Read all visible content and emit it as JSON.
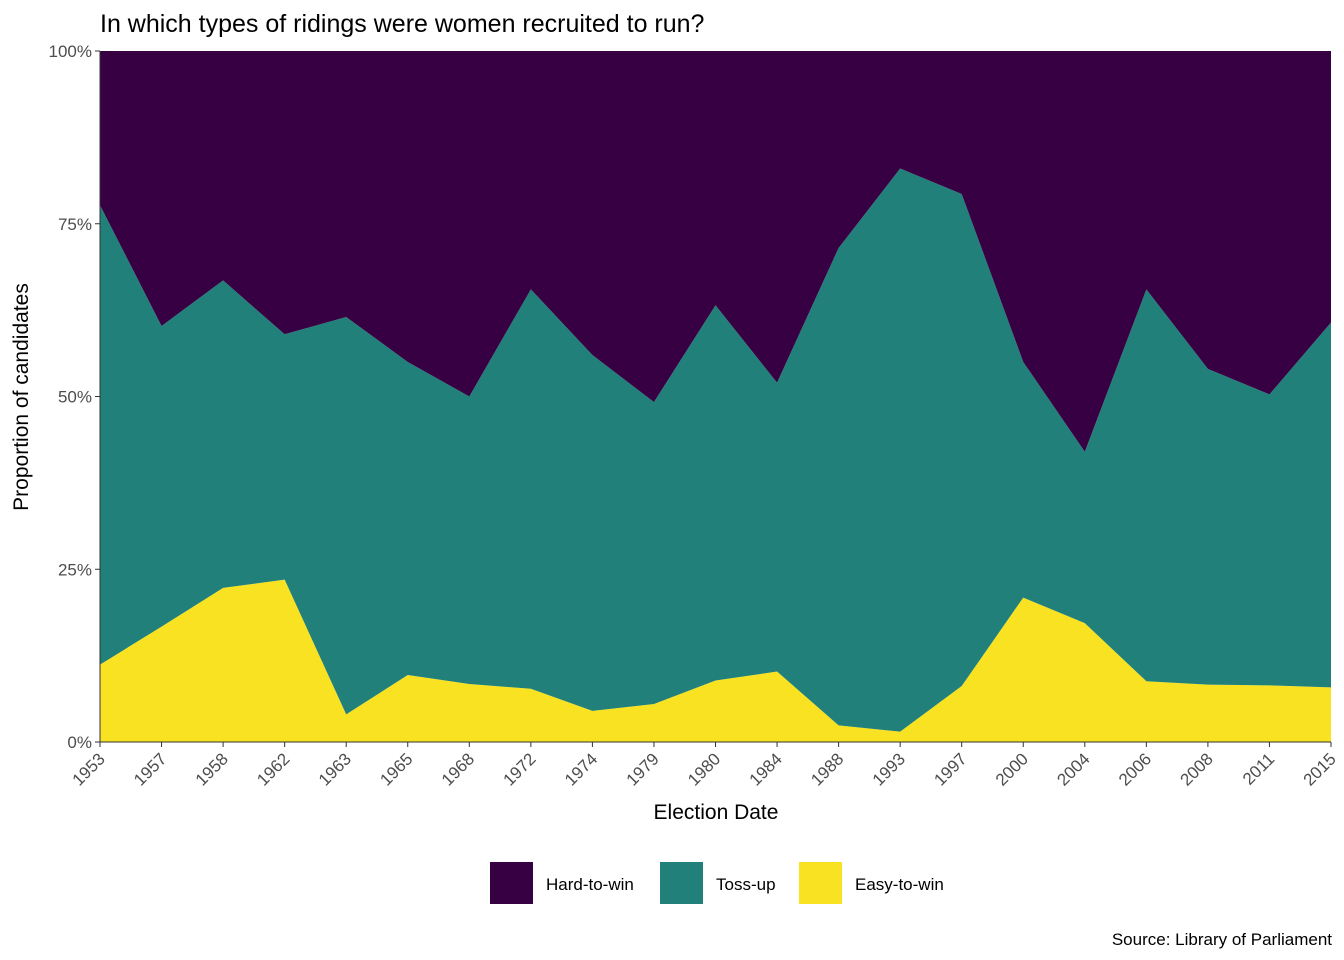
{
  "chart_data": {
    "type": "area",
    "stacked": "proportion",
    "title": "In which types of ridings were women recruited to run?",
    "xlabel": "Election Date",
    "ylabel": "Proportion of candidates",
    "caption": "Source: Library of Parliament",
    "categories": [
      "1953",
      "1957",
      "1958",
      "1962",
      "1963",
      "1965",
      "1968",
      "1972",
      "1974",
      "1979",
      "1980",
      "1984",
      "1988",
      "1993",
      "1997",
      "2000",
      "2004",
      "2006",
      "2008",
      "2011",
      "2015"
    ],
    "y_ticks": [
      "0%",
      "25%",
      "50%",
      "75%",
      "100%"
    ],
    "ylim": [
      0,
      1
    ],
    "grid": false,
    "legend_position": "bottom",
    "series": [
      {
        "name": "Hard-to-win",
        "color": "#360043",
        "values": [
          0.223,
          0.398,
          0.332,
          0.41,
          0.385,
          0.45,
          0.5,
          0.345,
          0.44,
          0.508,
          0.368,
          0.48,
          0.285,
          0.17,
          0.207,
          0.45,
          0.58,
          0.345,
          0.46,
          0.497,
          0.393
        ]
      },
      {
        "name": "Toss-up",
        "color": "#21807a",
        "values": [
          0.665,
          0.435,
          0.445,
          0.355,
          0.575,
          0.453,
          0.416,
          0.578,
          0.515,
          0.437,
          0.543,
          0.418,
          0.691,
          0.815,
          0.712,
          0.341,
          0.248,
          0.567,
          0.457,
          0.421,
          0.528
        ]
      },
      {
        "name": "Easy-to-win",
        "color": "#f9e221",
        "values": [
          0.112,
          0.167,
          0.223,
          0.235,
          0.04,
          0.097,
          0.084,
          0.077,
          0.045,
          0.055,
          0.089,
          0.102,
          0.024,
          0.015,
          0.081,
          0.209,
          0.172,
          0.088,
          0.083,
          0.082,
          0.079
        ]
      }
    ]
  }
}
